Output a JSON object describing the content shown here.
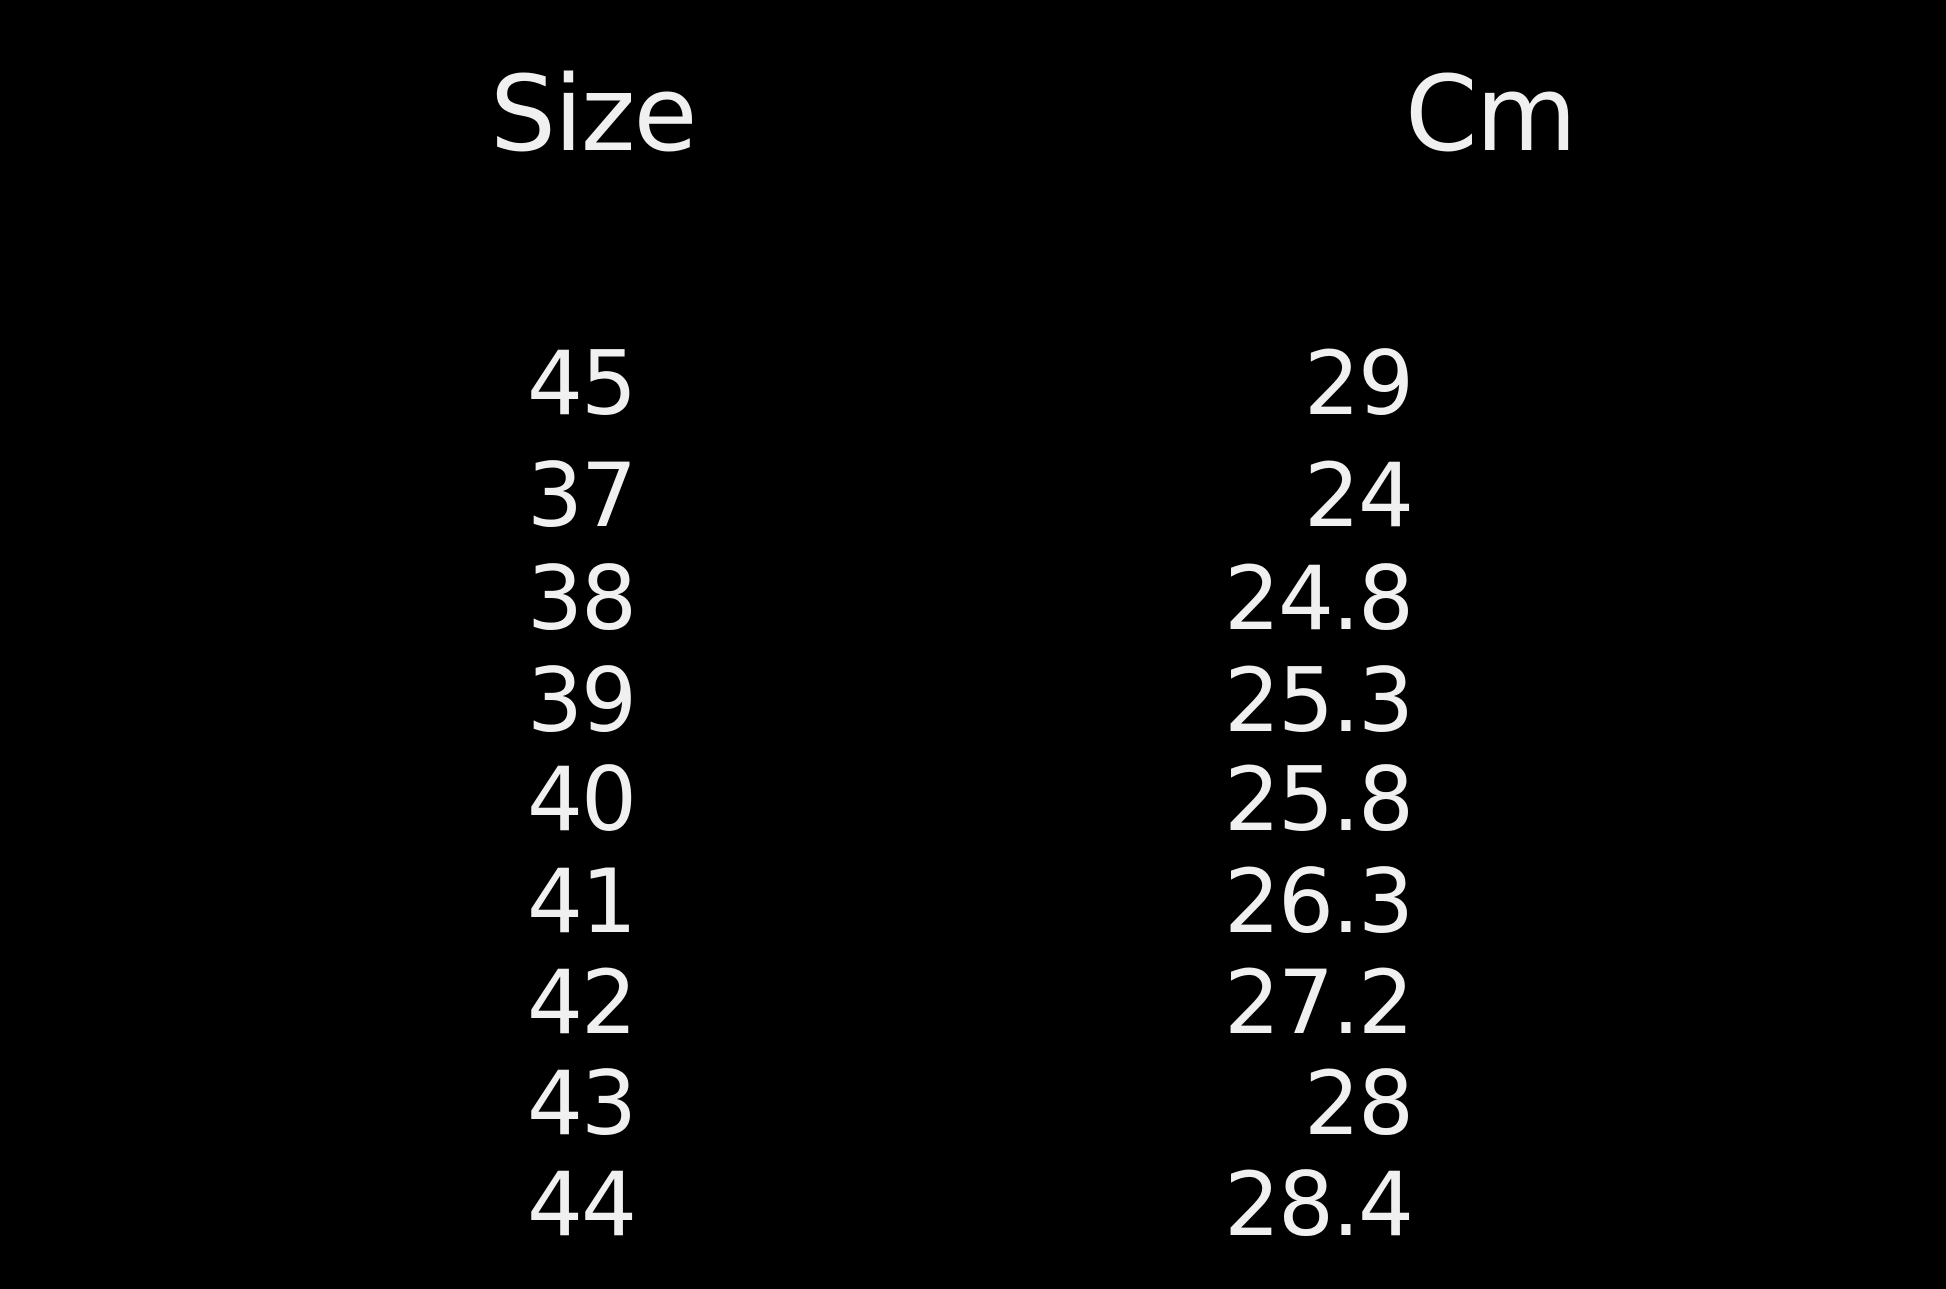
{
  "table": {
    "headers": {
      "size": "Size",
      "cm": "Cm"
    },
    "rows": [
      {
        "size": "45",
        "cm": "29"
      },
      {
        "size": "37",
        "cm": "24"
      },
      {
        "size": "38",
        "cm": "24.8"
      },
      {
        "size": "39",
        "cm": "25.3"
      },
      {
        "size": "40",
        "cm": "25.8"
      },
      {
        "size": "41",
        "cm": "26.3"
      },
      {
        "size": "42",
        "cm": "27.2"
      },
      {
        "size": "43",
        "cm": "28"
      },
      {
        "size": "44",
        "cm": "28.4"
      }
    ]
  },
  "colors": {
    "background": "#000000",
    "text": "#f0f0f0"
  }
}
